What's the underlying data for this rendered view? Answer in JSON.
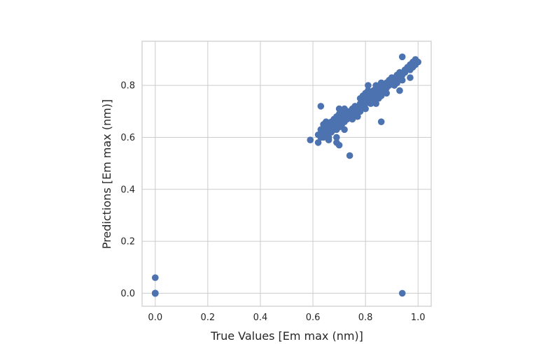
{
  "chart_data": {
    "type": "scatter",
    "title": "",
    "xlabel": "True Values [Em max (nm)]",
    "ylabel": "Predictions [Em max (nm)]",
    "xlim": [
      -0.05,
      1.05
    ],
    "ylim": [
      -0.05,
      0.97
    ],
    "xticks": [
      0.0,
      0.2,
      0.4,
      0.6,
      0.8,
      1.0
    ],
    "yticks": [
      0.0,
      0.2,
      0.4,
      0.6,
      0.8
    ],
    "xtick_labels": [
      "0.0",
      "0.2",
      "0.4",
      "0.6",
      "0.8",
      "1.0"
    ],
    "ytick_labels": [
      "0.0",
      "0.2",
      "0.4",
      "0.6",
      "0.8"
    ],
    "grid": true,
    "marker_color": "#4c72b0",
    "grid_color": "#cccccc",
    "series": [
      {
        "x": [
          0.0,
          0.0,
          0.0,
          0.0,
          0.0,
          0.0,
          0.0,
          0.0,
          0.0,
          0.0,
          0.0,
          0.0,
          0.0,
          0.94,
          0.59,
          0.62,
          0.62,
          0.63,
          0.63,
          0.64,
          0.64,
          0.64,
          0.65,
          0.65,
          0.65,
          0.66,
          0.66,
          0.66,
          0.67,
          0.67,
          0.67,
          0.68,
          0.68,
          0.68,
          0.69,
          0.69,
          0.69,
          0.69,
          0.7,
          0.7,
          0.7,
          0.7,
          0.71,
          0.71,
          0.71,
          0.72,
          0.72,
          0.72,
          0.73,
          0.73,
          0.73,
          0.74,
          0.74,
          0.75,
          0.75,
          0.75,
          0.76,
          0.76,
          0.77,
          0.77,
          0.78,
          0.78,
          0.78,
          0.79,
          0.79,
          0.79,
          0.8,
          0.8,
          0.8,
          0.8,
          0.81,
          0.81,
          0.81,
          0.82,
          0.82,
          0.82,
          0.83,
          0.83,
          0.83,
          0.84,
          0.84,
          0.84,
          0.85,
          0.85,
          0.86,
          0.86,
          0.86,
          0.87,
          0.87,
          0.88,
          0.88,
          0.88,
          0.89,
          0.89,
          0.9,
          0.9,
          0.91,
          0.91,
          0.92,
          0.92,
          0.93,
          0.93,
          0.94,
          0.94,
          0.95,
          0.95,
          0.96,
          0.97,
          0.97,
          0.98,
          0.98,
          0.99,
          0.99,
          1.0,
          0.63,
          0.74,
          0.7,
          0.81,
          0.86,
          0.84,
          0.94,
          0.93,
          0.97,
          0.69,
          0.66,
          0.72
        ],
        "y": [
          0.0,
          0.0,
          0.0,
          0.0,
          0.0,
          0.0,
          0.0,
          0.0,
          0.0,
          0.0,
          0.0,
          0.0,
          0.06,
          0.0,
          0.59,
          0.58,
          0.61,
          0.6,
          0.63,
          0.62,
          0.65,
          0.6,
          0.64,
          0.61,
          0.66,
          0.63,
          0.6,
          0.65,
          0.62,
          0.66,
          0.64,
          0.67,
          0.63,
          0.65,
          0.6,
          0.68,
          0.66,
          0.63,
          0.69,
          0.66,
          0.64,
          0.71,
          0.67,
          0.7,
          0.65,
          0.68,
          0.66,
          0.71,
          0.69,
          0.67,
          0.7,
          0.7,
          0.68,
          0.71,
          0.69,
          0.67,
          0.7,
          0.72,
          0.71,
          0.68,
          0.73,
          0.7,
          0.75,
          0.72,
          0.74,
          0.76,
          0.73,
          0.71,
          0.75,
          0.77,
          0.74,
          0.76,
          0.78,
          0.75,
          0.73,
          0.77,
          0.76,
          0.78,
          0.74,
          0.77,
          0.79,
          0.8,
          0.75,
          0.78,
          0.79,
          0.76,
          0.81,
          0.78,
          0.8,
          0.79,
          0.81,
          0.77,
          0.8,
          0.82,
          0.81,
          0.83,
          0.82,
          0.8,
          0.84,
          0.81,
          0.83,
          0.85,
          0.84,
          0.82,
          0.86,
          0.85,
          0.87,
          0.86,
          0.88,
          0.89,
          0.87,
          0.9,
          0.88,
          0.89,
          0.72,
          0.53,
          0.57,
          0.8,
          0.66,
          0.73,
          0.91,
          0.78,
          0.83,
          0.58,
          0.59,
          0.63
        ]
      }
    ]
  }
}
